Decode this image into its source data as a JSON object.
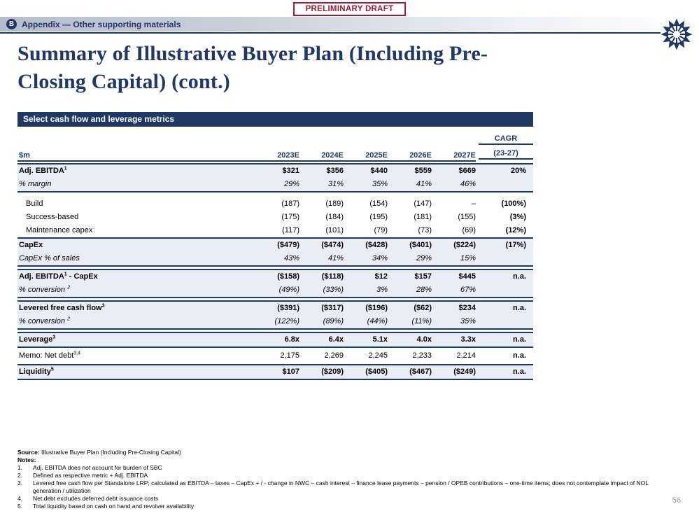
{
  "stamp": {
    "label": "PRELIMINARY DRAFT"
  },
  "header": {
    "badge": "B",
    "section_title": "Appendix — Other supporting materials"
  },
  "title": {
    "line1": "Summary of Illustrative Buyer Plan (Including Pre-",
    "line2": "Closing Capital) (cont.)"
  },
  "colors": {
    "navy": "#1F3864",
    "maroon": "#9E1B32",
    "row_shade": "#E9EDF5",
    "page_number_gray": "#9c9c9c"
  },
  "table": {
    "title": "Select cash flow and leverage metrics",
    "unit": "$m",
    "cagr": {
      "line1": "CAGR",
      "line2": "(23-27)"
    },
    "years": [
      "2023E",
      "2024E",
      "2025E",
      "2026E",
      "2027E"
    ],
    "blocks": [
      {
        "shaded": true,
        "gap": 2,
        "rows": [
          {
            "style": "bold",
            "label": "Adj. EBITDA",
            "sup": "1",
            "suffix": "",
            "values": [
              "$321",
              "$356",
              "$440",
              "$559",
              "$669",
              "20%"
            ]
          },
          {
            "style": "italic",
            "label": "% margin",
            "sup": "",
            "suffix": "",
            "values": [
              "29%",
              "31%",
              "35%",
              "41%",
              "46%",
              ""
            ]
          }
        ]
      },
      {
        "shaded": false,
        "gap": 7,
        "rows": [
          {
            "style": "indent",
            "label": "Build",
            "sup": "",
            "suffix": "",
            "values": [
              "(187)",
              "(189)",
              "(154)",
              "(147)",
              "–",
              "(100%)"
            ]
          },
          {
            "style": "indent",
            "label": "Success-based",
            "sup": "",
            "suffix": "",
            "values": [
              "(175)",
              "(184)",
              "(195)",
              "(181)",
              "(155)",
              "(3%)"
            ]
          },
          {
            "style": "indent",
            "label": "Maintenance capex",
            "sup": "",
            "suffix": "",
            "values": [
              "(117)",
              "(101)",
              "(79)",
              "(73)",
              "(69)",
              "(12%)"
            ]
          }
        ]
      },
      {
        "shaded": true,
        "gap": 0,
        "rows": [
          {
            "style": "bold",
            "label": "CapEx",
            "sup": "",
            "suffix": "",
            "values": [
              "($479)",
              "($474)",
              "($428)",
              "($401)",
              "($224)",
              "(17%)"
            ]
          },
          {
            "style": "italic",
            "label": "CapEx % of sales",
            "sup": "",
            "suffix": "",
            "values": [
              "43%",
              "41%",
              "34%",
              "29%",
              "15%",
              ""
            ]
          }
        ]
      },
      {
        "shaded": true,
        "gap": 3,
        "rows": [
          {
            "style": "bold",
            "label": "Adj. EBITDA",
            "sup": "1",
            "suffix": " - CapEx",
            "values": [
              "($158)",
              "($118)",
              "$12",
              "$157",
              "$445",
              "n.a."
            ]
          },
          {
            "style": "italic",
            "label": "% conversion ",
            "sup": "2",
            "suffix": "",
            "values": [
              "(49%)",
              "(33%)",
              "3%",
              "28%",
              "67%",
              ""
            ]
          }
        ]
      },
      {
        "shaded": true,
        "gap": 3,
        "rows": [
          {
            "style": "bold",
            "label": "Levered free cash flow",
            "sup": "3",
            "suffix": "",
            "values": [
              "($391)",
              "($317)",
              "($196)",
              "($62)",
              "$234",
              "n.a."
            ]
          },
          {
            "style": "italic",
            "label": "% conversion ",
            "sup": "2",
            "suffix": "",
            "values": [
              "(122%)",
              "(89%)",
              "(44%)",
              "(11%)",
              "35%",
              ""
            ]
          }
        ]
      },
      {
        "shaded": true,
        "gap": 3,
        "rows": [
          {
            "style": "bold",
            "label": "Leverage",
            "sup": "3",
            "suffix": "",
            "values": [
              "6.8x",
              "6.4x",
              "5.1x",
              "4.0x",
              "3.3x",
              "n.a."
            ]
          }
        ]
      },
      {
        "shaded": false,
        "gap": 0,
        "rows": [
          {
            "style": "memo",
            "label": "Memo: Net debt",
            "sup": "3,4",
            "suffix": "",
            "values": [
              "2,175",
              "2,269",
              "2,245",
              "2,233",
              "2,214",
              "n.a."
            ]
          }
        ]
      },
      {
        "shaded": true,
        "gap": 0,
        "rows": [
          {
            "style": "bold",
            "label": "Liquidity",
            "sup": "5",
            "suffix": "",
            "values": [
              "$107",
              "($209)",
              "($405)",
              "($467)",
              "($249)",
              "n.a."
            ]
          }
        ]
      }
    ]
  },
  "footer": {
    "source_label": "Source:",
    "source_text": " Illustrative Buyer Plan (Including Pre-Closing Capital)",
    "notes_label": "Notes:",
    "notes": [
      {
        "num": "1.",
        "text": "Adj. EBITDA does not account for burden of SBC"
      },
      {
        "num": "2.",
        "text": "Defined as respective metric + Adj. EBITDA"
      },
      {
        "num": "3.",
        "text": "Levered free cash flow per Standalone LRP; calculated as EBITDA – taxes – CapEx + / - change in NWC – cash interest – finance lease payments – pension / OPEB contributions – one-time items; does not contemplate impact of NOL generation / utilization"
      },
      {
        "num": "4.",
        "text": "Net debt excludes deferred debt issuance costs"
      },
      {
        "num": "5.",
        "text": "Total liquidity based on cash on hand and revolver availability"
      }
    ]
  },
  "page_number": "56"
}
